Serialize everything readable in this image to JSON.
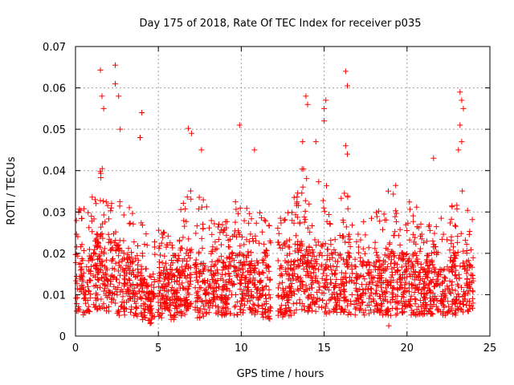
{
  "chart_data": {
    "type": "scatter",
    "title": "Day 175 of 2018, Rate Of TEC Index for receiver p035",
    "xlabel": "GPS time / hours",
    "ylabel": "ROTI / TECUs",
    "xlim": [
      0,
      25
    ],
    "ylim": [
      0,
      0.07
    ],
    "xticks": [
      0,
      5,
      10,
      15,
      20,
      25
    ],
    "yticks": [
      0,
      0.01,
      0.02,
      0.03,
      0.04,
      0.05,
      0.06,
      0.07
    ],
    "xtick_labels": [
      "0",
      "5",
      "10",
      "15",
      "20",
      "25"
    ],
    "ytick_labels": [
      "0",
      "0.01",
      "0.02",
      "0.03",
      "0.04",
      "0.05",
      "0.06",
      "0.07"
    ],
    "grid": true,
    "marker": "+",
    "color": "#ff0000",
    "notable_points": [
      {
        "x": 1.5,
        "y": 0.0643
      },
      {
        "x": 2.4,
        "y": 0.0655
      },
      {
        "x": 2.4,
        "y": 0.061
      },
      {
        "x": 1.6,
        "y": 0.058
      },
      {
        "x": 1.7,
        "y": 0.055
      },
      {
        "x": 2.6,
        "y": 0.058
      },
      {
        "x": 2.7,
        "y": 0.05
      },
      {
        "x": 4.0,
        "y": 0.054
      },
      {
        "x": 3.9,
        "y": 0.048
      },
      {
        "x": 6.8,
        "y": 0.0502
      },
      {
        "x": 7.0,
        "y": 0.049
      },
      {
        "x": 7.6,
        "y": 0.045
      },
      {
        "x": 9.9,
        "y": 0.051
      },
      {
        "x": 10.8,
        "y": 0.045
      },
      {
        "x": 13.9,
        "y": 0.058
      },
      {
        "x": 14.0,
        "y": 0.056
      },
      {
        "x": 13.7,
        "y": 0.047
      },
      {
        "x": 14.5,
        "y": 0.047
      },
      {
        "x": 15.1,
        "y": 0.057
      },
      {
        "x": 15.0,
        "y": 0.055
      },
      {
        "x": 15.0,
        "y": 0.052
      },
      {
        "x": 16.3,
        "y": 0.064
      },
      {
        "x": 16.4,
        "y": 0.0605
      },
      {
        "x": 16.3,
        "y": 0.046
      },
      {
        "x": 16.4,
        "y": 0.044
      },
      {
        "x": 18.9,
        "y": 0.0025
      },
      {
        "x": 21.6,
        "y": 0.043
      },
      {
        "x": 23.2,
        "y": 0.059
      },
      {
        "x": 23.3,
        "y": 0.057
      },
      {
        "x": 23.4,
        "y": 0.055
      },
      {
        "x": 23.2,
        "y": 0.051
      },
      {
        "x": 23.3,
        "y": 0.047
      },
      {
        "x": 23.1,
        "y": 0.045
      }
    ],
    "envelope": {
      "hours": [
        0,
        0.5,
        1,
        1.5,
        2,
        2.5,
        3,
        3.5,
        4,
        4.5,
        5,
        5.5,
        6,
        6.5,
        7,
        7.5,
        8,
        8.5,
        9,
        9.5,
        10,
        10.5,
        11,
        11.5,
        12,
        12.5,
        13,
        13.5,
        14,
        14.5,
        15,
        15.5,
        16,
        16.5,
        17,
        17.5,
        18,
        18.5,
        19,
        19.5,
        20,
        20.5,
        21,
        21.5,
        22,
        22.5,
        23,
        23.5,
        24
      ],
      "lower": [
        0.006,
        0.005,
        0.006,
        0.006,
        0.006,
        0.005,
        0.005,
        0.005,
        0.004,
        0.003,
        0.004,
        0.004,
        0.004,
        0.005,
        0.005,
        0.004,
        0.005,
        0.005,
        0.005,
        0.005,
        0.005,
        0.005,
        0.005,
        0.004,
        0.004,
        0.004,
        0.005,
        0.005,
        0.005,
        0.005,
        0.005,
        0.005,
        0.005,
        0.005,
        0.005,
        0.005,
        0.005,
        0.005,
        0.005,
        0.005,
        0.005,
        0.005,
        0.005,
        0.005,
        0.005,
        0.005,
        0.005,
        0.005,
        0.006
      ],
      "upper": [
        0.038,
        0.032,
        0.036,
        0.042,
        0.038,
        0.04,
        0.035,
        0.03,
        0.032,
        0.02,
        0.03,
        0.026,
        0.028,
        0.034,
        0.036,
        0.038,
        0.03,
        0.028,
        0.03,
        0.034,
        0.036,
        0.03,
        0.034,
        0.028,
        0.026,
        0.03,
        0.036,
        0.042,
        0.04,
        0.036,
        0.04,
        0.03,
        0.034,
        0.036,
        0.026,
        0.03,
        0.03,
        0.034,
        0.038,
        0.036,
        0.034,
        0.038,
        0.03,
        0.034,
        0.03,
        0.03,
        0.04,
        0.034,
        0.03
      ],
      "dense_top": [
        0.02,
        0.018,
        0.02,
        0.024,
        0.022,
        0.022,
        0.02,
        0.018,
        0.016,
        0.012,
        0.016,
        0.016,
        0.016,
        0.018,
        0.02,
        0.018,
        0.016,
        0.018,
        0.018,
        0.02,
        0.02,
        0.018,
        0.018,
        0.016,
        0.014,
        0.016,
        0.018,
        0.022,
        0.02,
        0.02,
        0.02,
        0.018,
        0.018,
        0.02,
        0.016,
        0.018,
        0.018,
        0.018,
        0.02,
        0.02,
        0.018,
        0.02,
        0.016,
        0.018,
        0.016,
        0.016,
        0.02,
        0.018,
        0.016
      ],
      "gaps": [
        [
          4.8,
          4.95
        ],
        [
          7.0,
          7.2
        ],
        [
          11.8,
          12.2
        ],
        [
          16.7,
          16.8
        ]
      ]
    }
  }
}
